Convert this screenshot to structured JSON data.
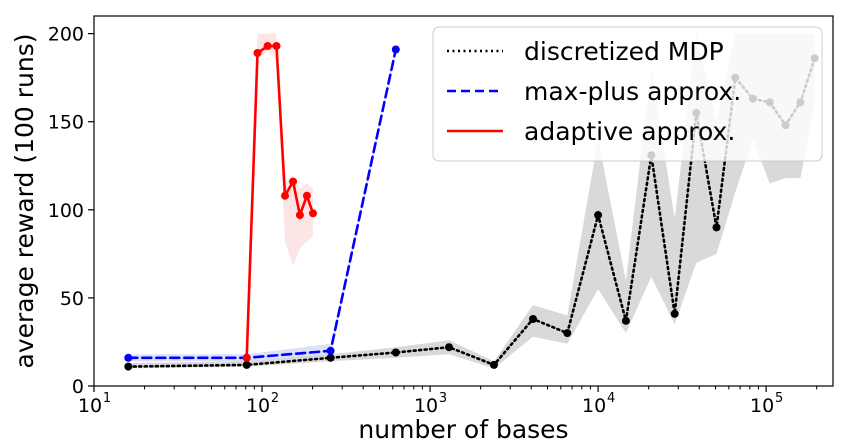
{
  "chart_data": {
    "type": "line",
    "title": "",
    "xlabel": "number of bases",
    "ylabel": "average reward (100 runs)",
    "xscale": "log",
    "xlim": [
      10,
      250000
    ],
    "ylim": [
      0,
      210
    ],
    "x_ticks": [
      10,
      100,
      1000,
      10000,
      100000
    ],
    "x_tick_labels": [
      "10",
      "10",
      "10",
      "10",
      "10"
    ],
    "x_tick_exponents": [
      "1",
      "2",
      "3",
      "4",
      "5"
    ],
    "y_ticks": [
      0,
      50,
      100,
      150,
      200
    ],
    "y_tick_labels": [
      "0",
      "50",
      "100",
      "150",
      "200"
    ],
    "grid": false,
    "legend_position": "top-right",
    "series": [
      {
        "name": "discretized MDP",
        "style": "dotted",
        "color": "#000000",
        "band_color": "#bfbfbf",
        "x": [
          16,
          81,
          256,
          625,
          1296,
          2401,
          4096,
          6561,
          10000,
          14641,
          20736,
          28561,
          38416,
          50625,
          65536,
          83521,
          104976,
          130321,
          160000,
          194481
        ],
        "y": [
          11,
          12,
          16,
          19,
          22,
          12,
          38,
          30,
          97,
          37,
          131,
          41,
          155,
          90,
          175,
          163,
          161,
          148,
          161,
          186
        ],
        "lower": [
          10,
          11,
          14,
          16,
          18,
          10,
          28,
          24,
          55,
          30,
          62,
          35,
          70,
          75,
          110,
          140,
          115,
          118,
          118,
          160
        ],
        "upper": [
          13,
          14,
          18,
          22,
          26,
          14,
          46,
          40,
          140,
          60,
          180,
          95,
          200,
          150,
          200,
          200,
          200,
          200,
          200,
          200
        ]
      },
      {
        "name": "max-plus approx.",
        "style": "dashed",
        "color": "#0000ff",
        "band_color": "#c7cdf2",
        "x": [
          16,
          81,
          256,
          625
        ],
        "y": [
          16,
          16,
          20,
          191
        ],
        "lower": [
          14,
          14,
          17,
          190
        ],
        "upper": [
          18,
          18,
          24,
          192
        ]
      },
      {
        "name": "adaptive approx.",
        "style": "solid",
        "color": "#ff0000",
        "band_color": "#fbd3d3",
        "x": [
          81,
          94,
          108,
          122,
          137,
          153,
          168,
          185,
          201
        ],
        "y": [
          16,
          189,
          193,
          193,
          108,
          116,
          97,
          108,
          98
        ],
        "lower": [
          15,
          186,
          190,
          185,
          82,
          68,
          78,
          82,
          85
        ],
        "upper": [
          17,
          200,
          200,
          200,
          115,
          120,
          112,
          115,
          112
        ]
      }
    ]
  }
}
